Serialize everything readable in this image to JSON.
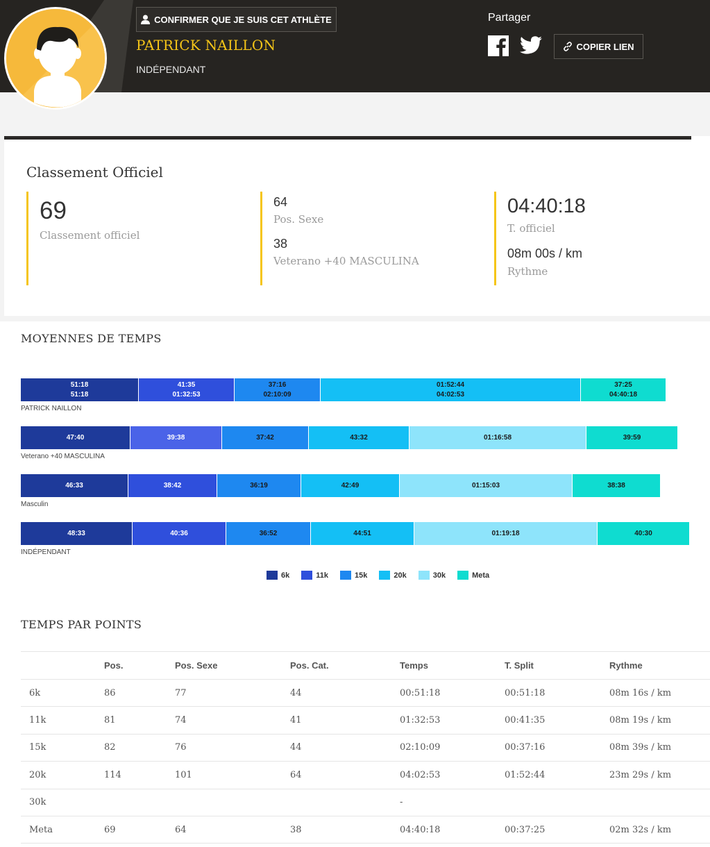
{
  "header": {
    "confirm_label": "CONFIRMER QUE JE SUIS CET ATHLÈTE",
    "athlete_name": "PATRICK NAILLON",
    "club": "INDÉPENDANT",
    "share_label": "Partager",
    "copy_link_label": "COPIER LIEN",
    "accent_color": "#f5c518"
  },
  "ranking": {
    "title": "Classement Officiel",
    "overall": {
      "value": "69",
      "label": "Classement officiel"
    },
    "sex": {
      "value": "64",
      "label": "Pos. Sexe"
    },
    "category": {
      "value": "38",
      "label": "Veterano +40 MASCULINA"
    },
    "official_time": {
      "value": "04:40:18",
      "label": "T. officiel"
    },
    "pace": {
      "value": "08m 00s / km",
      "label": "Rythme"
    }
  },
  "averages": {
    "title": "MOYENNES DE TEMPS",
    "legend": [
      {
        "label": "6k",
        "color": "#1e3a9a"
      },
      {
        "label": "11k",
        "color": "#2f4fdc"
      },
      {
        "label": "15k",
        "color": "#1e88f0"
      },
      {
        "label": "20k",
        "color": "#14bff5"
      },
      {
        "label": "30k",
        "color": "#8ee4fb"
      },
      {
        "label": "Meta",
        "color": "#0fdcd0"
      }
    ],
    "rows": [
      {
        "label": "PATRICK NAILLON",
        "segments": [
          {
            "split": "51:18",
            "cumulative": "51:18"
          },
          {
            "split": "41:35",
            "cumulative": "01:32:53"
          },
          {
            "split": "37:16",
            "cumulative": "02:10:09"
          },
          {
            "split": "01:52:44",
            "cumulative": "04:02:53"
          },
          {
            "split": "37:25",
            "cumulative": "04:40:18"
          }
        ]
      },
      {
        "label": "Veterano +40 MASCULINA",
        "segments": [
          {
            "split": "47:40"
          },
          {
            "split": "39:38"
          },
          {
            "split": "37:42"
          },
          {
            "split": "43:32"
          },
          {
            "split": "01:16:58"
          },
          {
            "split": "39:59"
          }
        ]
      },
      {
        "label": "Masculin",
        "segments": [
          {
            "split": "46:33"
          },
          {
            "split": "38:42"
          },
          {
            "split": "36:19"
          },
          {
            "split": "42:49"
          },
          {
            "split": "01:15:03"
          },
          {
            "split": "38:38"
          }
        ]
      },
      {
        "label": "INDÉPENDANT",
        "segments": [
          {
            "split": "48:33"
          },
          {
            "split": "40:36"
          },
          {
            "split": "36:52"
          },
          {
            "split": "44:51"
          },
          {
            "split": "01:19:18"
          },
          {
            "split": "40:30"
          }
        ]
      }
    ]
  },
  "splits": {
    "title": "TEMPS PAR POINTS",
    "columns": [
      "",
      "Pos.",
      "Pos. Sexe",
      "Pos. Cat.",
      "Temps",
      "T. Split",
      "Rythme"
    ],
    "rows": [
      [
        "6k",
        "86",
        "77",
        "44",
        "00:51:18",
        "00:51:18",
        "08m 16s / km"
      ],
      [
        "11k",
        "81",
        "74",
        "41",
        "01:32:53",
        "00:41:35",
        "08m 19s / km"
      ],
      [
        "15k",
        "82",
        "76",
        "44",
        "02:10:09",
        "00:37:16",
        "08m 39s / km"
      ],
      [
        "20k",
        "114",
        "101",
        "64",
        "04:02:53",
        "01:52:44",
        "23m 29s / km"
      ],
      [
        "30k",
        "",
        "",
        "",
        "-",
        "",
        ""
      ],
      [
        "Meta",
        "69",
        "64",
        "38",
        "04:40:18",
        "00:37:25",
        "02m 32s / km"
      ]
    ]
  }
}
